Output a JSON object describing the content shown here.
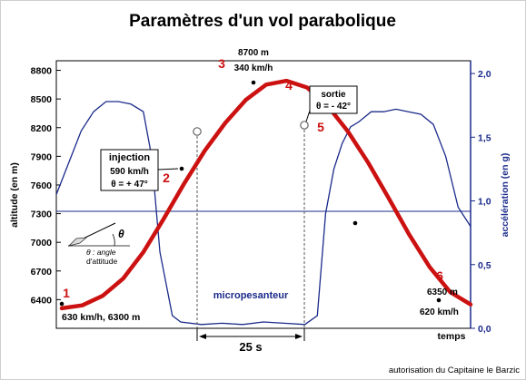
{
  "chart_data": {
    "type": "line",
    "title": "Paramètres d'un vol parabolique",
    "xlabel": "temps",
    "ylabel_left": "altitude (en m)",
    "ylabel_right": "accélération (en g)",
    "ylim_left": [
      6100,
      8900
    ],
    "yticks_left": [
      "6400",
      "6700",
      "7000",
      "7300",
      "7600",
      "7900",
      "8200",
      "8500",
      "8800"
    ],
    "ylim_right": [
      0.0,
      2.1
    ],
    "yticks_right": [
      "0,0",
      "0,5",
      "1,0",
      "1,5",
      "2,0"
    ],
    "colors": {
      "altitude": "#cc1111",
      "acceleration": "#1a2a8a",
      "axis": "#1a2a8a"
    },
    "series": [
      {
        "key": "altitude",
        "axis": "left",
        "x": [
          0,
          5,
          10,
          15,
          20,
          25,
          30,
          35,
          40,
          45,
          50,
          55,
          60,
          65,
          70,
          75,
          80,
          85,
          90,
          95,
          100
        ],
        "values": [
          6310,
          6340,
          6440,
          6620,
          6900,
          7250,
          7620,
          7960,
          8250,
          8490,
          8650,
          8690,
          8620,
          8430,
          8160,
          7830,
          7460,
          7080,
          6740,
          6480,
          6350
        ]
      },
      {
        "key": "acceleration",
        "axis": "right",
        "x": [
          0,
          3,
          6,
          9,
          12,
          15,
          18,
          21,
          23,
          25,
          28,
          30,
          35,
          40,
          45,
          50,
          55,
          60,
          63,
          65,
          67,
          69,
          71,
          73,
          76,
          79,
          82,
          85,
          88,
          91,
          94,
          97,
          100
        ],
        "values": [
          1.05,
          1.3,
          1.55,
          1.7,
          1.78,
          1.78,
          1.76,
          1.7,
          1.35,
          0.6,
          0.1,
          0.05,
          0.03,
          0.04,
          0.03,
          0.05,
          0.04,
          0.03,
          0.1,
          0.9,
          1.25,
          1.45,
          1.58,
          1.62,
          1.7,
          1.7,
          1.72,
          1.7,
          1.68,
          1.6,
          1.35,
          0.95,
          0.8
        ]
      }
    ],
    "phase_labels": [
      "1",
      "2",
      "3",
      "4",
      "5",
      "6"
    ]
  },
  "annotations": {
    "top": {
      "alt": "8700 m",
      "speed": "340 km/h"
    },
    "injection": {
      "title": "injection",
      "speed": "590 km/h",
      "angle": "θ = + 47°"
    },
    "sortie": {
      "title": "sortie",
      "angle": "θ = - 42°"
    },
    "micro": "micropesanteur",
    "duration": "25 s",
    "start": "630 km/h,  6300 m",
    "end_alt": "6350 m",
    "end_speed": "620 km/h",
    "angle_symbol": "θ",
    "angle_def": "θ : angle",
    "angle_def2": "d'attitude"
  },
  "credit": "autorisation du Capitaine le Barzic"
}
